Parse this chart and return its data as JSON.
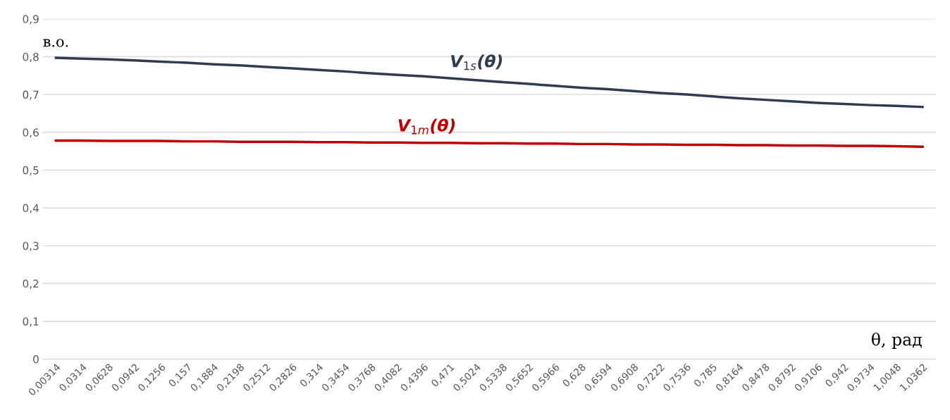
{
  "chart_data": {
    "type": "line",
    "xlabel": "θ, рад",
    "ylabel": "в.о.",
    "categories": [
      "0,00314",
      "0,0314",
      "0,0628",
      "0,0942",
      "0,1256",
      "0,157",
      "0,1884",
      "0,2198",
      "0,2512",
      "0,2826",
      "0,314",
      "0,3454",
      "0,3768",
      "0,4082",
      "0,4396",
      "0,471",
      "0,5024",
      "0,5338",
      "0,5652",
      "0,5966",
      "0,628",
      "0,6594",
      "0,6908",
      "0,7222",
      "0,7536",
      "0,785",
      "0,8164",
      "0,8478",
      "0,8792",
      "0,9106",
      "0,942",
      "0,9734",
      "1,0048",
      "1,0362"
    ],
    "series": [
      {
        "name": "V$_{1s}$(θ)",
        "color": "#2f3b4f",
        "values": [
          0.797,
          0.795,
          0.793,
          0.79,
          0.787,
          0.784,
          0.78,
          0.777,
          0.773,
          0.769,
          0.765,
          0.761,
          0.756,
          0.752,
          0.748,
          0.743,
          0.738,
          0.733,
          0.728,
          0.723,
          0.718,
          0.714,
          0.709,
          0.704,
          0.7,
          0.695,
          0.69,
          0.686,
          0.682,
          0.678,
          0.675,
          0.672,
          0.67,
          0.667
        ]
      },
      {
        "name": "V$_{1m}$(θ)",
        "color": "#c00000",
        "values": [
          0.578,
          0.578,
          0.577,
          0.577,
          0.577,
          0.576,
          0.576,
          0.575,
          0.575,
          0.575,
          0.574,
          0.574,
          0.573,
          0.573,
          0.572,
          0.572,
          0.571,
          0.571,
          0.57,
          0.57,
          0.569,
          0.569,
          0.568,
          0.568,
          0.567,
          0.567,
          0.566,
          0.566,
          0.565,
          0.565,
          0.564,
          0.564,
          0.563,
          0.562
        ]
      }
    ],
    "ylim": [
      0,
      0.9
    ],
    "yticks": [
      0,
      {
        "value": 0.1,
        "label": "0,1"
      },
      {
        "value": 0.2,
        "label": "0,2"
      },
      {
        "value": 0.3,
        "label": "0,3"
      },
      {
        "value": 0.4,
        "label": "0,4"
      },
      {
        "value": 0.5,
        "label": "0,5"
      },
      {
        "value": 0.6,
        "label": "0,6"
      },
      {
        "value": 0.7,
        "label": "0,7"
      },
      {
        "value": 0.8,
        "label": "0,8"
      },
      {
        "value": 0.9,
        "label": "0,9"
      }
    ],
    "grid": "y",
    "marker": "none",
    "line_style": "solid"
  }
}
